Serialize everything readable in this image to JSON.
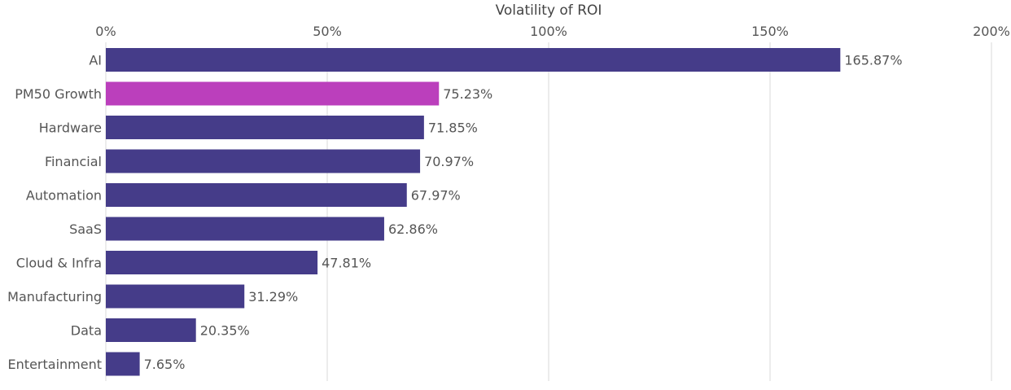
{
  "chart_data": {
    "type": "bar",
    "orientation": "horizontal",
    "xlabel": "Volatility of ROI",
    "xlabel_position": "top",
    "xlim": [
      0,
      200
    ],
    "xticks": [
      0,
      50,
      100,
      150,
      200
    ],
    "xtick_labels": [
      "0%",
      "50%",
      "100%",
      "150%",
      "200%"
    ],
    "grid": "vertical",
    "categories": [
      "AI",
      "PM50 Growth",
      "Hardware",
      "Financial",
      "Automation",
      "SaaS",
      "Cloud & Infra",
      "Manufacturing",
      "Data",
      "Entertainment"
    ],
    "values": [
      165.87,
      75.23,
      71.85,
      70.97,
      67.97,
      62.86,
      47.81,
      31.29,
      20.35,
      7.65
    ],
    "value_labels": [
      "165.87%",
      "75.23%",
      "71.85%",
      "70.97%",
      "67.97%",
      "62.86%",
      "47.81%",
      "31.29%",
      "20.35%",
      "7.65%"
    ],
    "colors": {
      "default": "#453c89",
      "highlight": "#bb3fbc",
      "highlight_category": "PM50 Growth"
    }
  }
}
